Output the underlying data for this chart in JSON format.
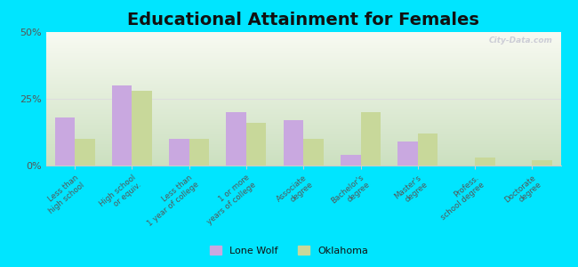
{
  "title": "Educational Attainment for Females",
  "categories": [
    "Less than\nhigh school",
    "High school\nor equiv.",
    "Less than\n1 year of college",
    "1 or more\nyears of college",
    "Associate\ndegree",
    "Bachelor's\ndegree",
    "Master's\ndegree",
    "Profess.\nschool degree",
    "Doctorate\ndegree"
  ],
  "lone_wolf": [
    18,
    30,
    10,
    20,
    17,
    4,
    9,
    0,
    0
  ],
  "oklahoma": [
    10,
    28,
    10,
    16,
    10,
    20,
    12,
    3,
    2
  ],
  "lone_wolf_color": "#c9a8e0",
  "oklahoma_color": "#c8d89a",
  "bg_top": "#f0f5e8",
  "bg_bottom": "#d8e8d0",
  "outer_bg": "#00e5ff",
  "title_fontsize": 14,
  "ylim": [
    0,
    50
  ],
  "yticks": [
    0,
    25,
    50
  ],
  "ytick_labels": [
    "0%",
    "25%",
    "50%"
  ],
  "bar_width": 0.35,
  "legend_labels": [
    "Lone Wolf",
    "Oklahoma"
  ],
  "grid_color": "#e8eedc",
  "spine_color": "#cccccc"
}
